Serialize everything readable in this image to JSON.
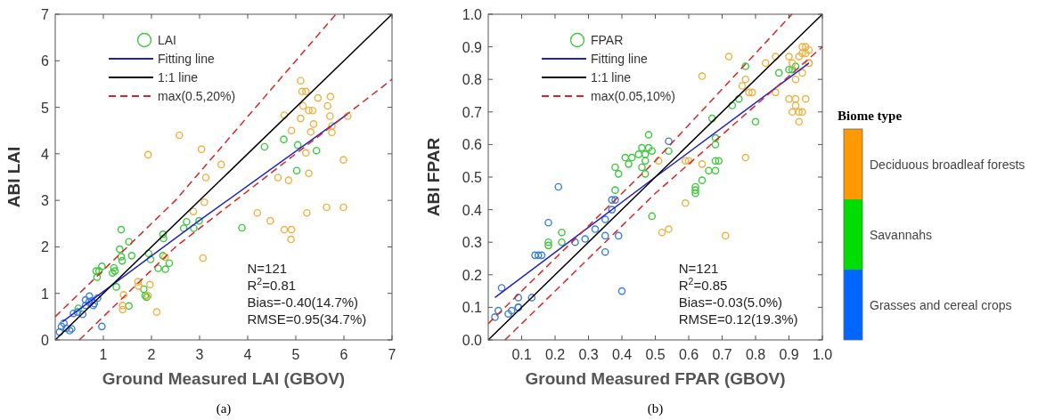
{
  "chart_data": [
    {
      "type": "scatter",
      "title": "(a)",
      "xlabel": "Ground Measured LAI (GBOV)",
      "ylabel": "ABI LAI",
      "xlim": [
        0,
        7
      ],
      "ylim": [
        0,
        7
      ],
      "xticks": [
        1,
        2,
        3,
        4,
        5,
        6,
        7
      ],
      "yticks": [
        0,
        1,
        2,
        3,
        4,
        5,
        6,
        7
      ],
      "legend": "top left",
      "annotations": [
        "N=121",
        "R$^{2}$=0.81",
        "Bias=-0.40(14.7%)",
        "RMSE=0.95(34.7%)"
      ],
      "series": [
        {
          "name": "LAI",
          "type": "scatter",
          "marker": "circle",
          "color": "#3cc83c",
          "x": [
            0.18,
            0.09,
            0.13,
            0.23,
            0.34,
            0.38,
            0.46,
            0.57,
            0.63,
            0.7,
            0.71,
            0.76,
            0.81,
            0.88,
            0.79,
            0.97,
            0.3,
            0.63,
            0.48,
            0.85,
            0.91,
            0.87,
            0.97,
            1.22,
            1.24,
            1.19,
            1.27,
            1.34,
            1.37,
            1.37,
            1.39,
            1.53,
            1.59,
            1.53,
            1.84,
            1.87,
            1.9,
            1.94,
            1.98,
            2.14,
            2.24,
            2.24,
            2.25,
            2.29,
            2.37,
            2.67,
            2.73,
            2.88,
            2.99,
            3.88,
            4.35,
            4.75,
            5.04,
            5.43,
            5.02,
            1.42,
            1.4,
            1.4,
            1.72,
            1.73,
            1.93,
            1.97,
            2.11,
            1.93,
            2.28,
            2.58,
            2.87,
            3.04,
            3.13,
            3.1,
            3.07,
            3.45,
            5.1,
            5.13,
            5.21,
            5.46,
            5.72,
            5.15,
            5.66,
            5.27,
            5.35,
            4.76,
            5.1,
            5.71,
            6.08,
            5.37,
            4.91,
            5.31,
            5.75,
            5.75,
            5.21,
            5.99,
            4.63,
            4.85,
            5.27,
            4.2,
            4.47,
            5.23,
            5.64,
            5.99,
            4.76,
            4.91,
            4.9
          ],
          "values": [
            0.36,
            0.17,
            0.29,
            0.25,
            0.24,
            0.57,
            0.6,
            0.55,
            0.74,
            0.81,
            0.94,
            0.84,
            0.78,
            0.9,
            0.74,
            0.29,
            0.2,
            0.86,
            0.68,
            1.48,
            1.48,
            1.35,
            1.58,
            1.55,
            1.48,
            1.44,
            1.14,
            1.95,
            2.37,
            1.79,
            1.7,
            2.11,
            1.81,
            0.73,
            1.09,
            0.95,
            0.92,
            1.86,
            1.73,
            1.54,
            1.81,
            2.27,
            2.18,
            1.52,
            1.65,
            2.4,
            2.54,
            2.4,
            2.56,
            2.41,
            4.15,
            4.31,
            4.19,
            4.07,
            3.64,
            0.97,
            0.74,
            0.65,
            1.25,
            1.16,
            0.95,
            1.19,
            0.6,
            3.98,
            1.78,
            4.4,
            2.76,
            4.1,
            3.49,
            2.96,
            1.76,
            3.77,
            5.57,
            5.34,
            5.34,
            5.2,
            5.23,
            5.03,
            5.03,
            4.93,
            4.93,
            4.83,
            4.76,
            4.81,
            4.81,
            4.64,
            4.5,
            4.47,
            4.46,
            4.6,
            4.02,
            3.87,
            3.49,
            3.43,
            3.58,
            2.73,
            2.56,
            2.73,
            2.85,
            2.85,
            2.37,
            2.37,
            2.16
          ],
          "colors": [
            "#3a7ee0",
            "#3a7ee0",
            "#3a7ee0",
            "#3a7ee0",
            "#3a7ee0",
            "#3a7ee0",
            "#3a7ee0",
            "#3a7ee0",
            "#3a7ee0",
            "#3a7ee0",
            "#3a7ee0",
            "#3a7ee0",
            "#3a7ee0",
            "#3a7ee0",
            "#3a7ee0",
            "#3a7ee0",
            "#3a7ee0",
            "#3a7ee0",
            "#3cc83c",
            "#3cc83c",
            "#3cc83c",
            "#3cc83c",
            "#3cc83c",
            "#3cc83c",
            "#3cc83c",
            "#3cc83c",
            "#3cc83c",
            "#3cc83c",
            "#3cc83c",
            "#3cc83c",
            "#3cc83c",
            "#3cc83c",
            "#3cc83c",
            "#3cc83c",
            "#3cc83c",
            "#3cc83c",
            "#3cc83c",
            "#3cc83c",
            "#3cc83c",
            "#3cc83c",
            "#3cc83c",
            "#3cc83c",
            "#3cc83c",
            "#3cc83c",
            "#3cc83c",
            "#3cc83c",
            "#3cc83c",
            "#3cc83c",
            "#3cc83c",
            "#3cc83c",
            "#3cc83c",
            "#3cc83c",
            "#3cc83c",
            "#3cc83c",
            "#3cc83c",
            "#f0b040",
            "#f0b040",
            "#f0b040",
            "#f0b040",
            "#f0b040",
            "#f0b040",
            "#f0b040",
            "#f0b040",
            "#f0b040",
            "#f0b040",
            "#f0b040",
            "#f0b040",
            "#f0b040",
            "#f0b040",
            "#f0b040",
            "#f0b040",
            "#f0b040",
            "#f0b040",
            "#f0b040",
            "#f0b040",
            "#f0b040",
            "#f0b040",
            "#f0b040",
            "#f0b040",
            "#f0b040",
            "#f0b040",
            "#f0b040",
            "#f0b040",
            "#f0b040",
            "#f0b040",
            "#f0b040",
            "#f0b040",
            "#f0b040",
            "#f0b040",
            "#f0b040",
            "#f0b040",
            "#f0b040",
            "#f0b040",
            "#f0b040",
            "#f0b040",
            "#f0b040",
            "#f0b040",
            "#f0b040",
            "#f0b040",
            "#f0b040",
            "#f0b040",
            "#f0b040",
            "#f0b040"
          ]
        },
        {
          "name": "Fitting line",
          "type": "line",
          "color": "#1f1fd0",
          "x": [
            0.15,
            3,
            6.07
          ],
          "values": [
            0.39,
            2.57,
            4.85
          ]
        },
        {
          "name": "1:1 line",
          "type": "line",
          "color": "#000000",
          "x": [
            0,
            3.5,
            7
          ],
          "values": [
            0,
            3.5,
            7
          ]
        },
        {
          "name": "max(0.5,20%)",
          "type": "line",
          "line_style": "dashed",
          "color": "#d62728",
          "x": [
            0,
            2.5,
            5.833
          ],
          "values": [
            0.5,
            3,
            7
          ]
        },
        {
          "type": "line",
          "line_style": "dashed",
          "color": "#d62728",
          "x": [
            0.5,
            2.5,
            7
          ],
          "values": [
            0,
            2,
            5.6
          ]
        }
      ]
    },
    {
      "type": "scatter",
      "title": "(b)",
      "xlabel": "Ground Measured FPAR (GBOV)",
      "ylabel": "ABI FPAR",
      "xlim": [
        0,
        1
      ],
      "ylim": [
        0,
        1
      ],
      "xticks": [
        0.1,
        0.2,
        0.3,
        0.4,
        0.5,
        0.6,
        0.7,
        0.8,
        0.9,
        {
          "value": 1,
          "label": "1.0"
        }
      ],
      "yticks": [
        {
          "value": 0,
          "label": "0.0"
        },
        0.1,
        0.2,
        0.3,
        0.4,
        0.5,
        0.6,
        0.7,
        0.8,
        0.9,
        {
          "value": 1,
          "label": "1.0"
        }
      ],
      "legend": "top left",
      "annotations": [
        "N=121",
        "R$^{2}$=0.85",
        "Bias=-0.03(5.0%)",
        "RMSE=0.12(19.3%)"
      ],
      "series": [
        {
          "name": "FPAR",
          "type": "scatter",
          "marker": "circle",
          "color": "#3cc83c",
          "x": [
            0.02,
            0.03,
            0.04,
            0.06,
            0.07,
            0.09,
            0.09,
            0.09,
            0.13,
            0.14,
            0.15,
            0.16,
            0.18,
            0.21,
            0.26,
            0.29,
            0.32,
            0.35,
            0.35,
            0.35,
            0.37,
            0.37,
            0.38,
            0.39,
            0.4,
            0.54,
            0.18,
            0.18,
            0.22,
            0.22,
            0.38,
            0.38,
            0.39,
            0.41,
            0.42,
            0.43,
            0.45,
            0.46,
            0.46,
            0.47,
            0.47,
            0.47,
            0.48,
            0.48,
            0.49,
            0.49,
            0.54,
            0.62,
            0.62,
            0.62,
            0.64,
            0.66,
            0.67,
            0.68,
            0.68,
            0.68,
            0.69,
            0.68,
            0.73,
            0.75,
            0.77,
            0.8,
            0.87,
            0.9,
            0.91,
            0.92,
            0.51,
            0.59,
            0.6,
            0.64,
            0.64,
            0.59,
            0.54,
            0.52,
            0.71,
            0.72,
            0.77,
            0.76,
            0.78,
            0.79,
            0.83,
            0.86,
            0.86,
            0.9,
            0.9,
            0.91,
            0.91,
            0.92,
            0.92,
            0.92,
            0.93,
            0.93,
            0.94,
            0.95,
            0.94,
            0.95,
            0.94,
            0.95,
            0.96,
            0.96,
            0.96,
            0.93,
            0.94,
            0.77
          ],
          "values": [
            0.07,
            0.09,
            0.16,
            0.08,
            0.09,
            0.1,
            0.13,
            0.1,
            0.13,
            0.26,
            0.26,
            0.26,
            0.36,
            0.47,
            0.3,
            0.31,
            0.34,
            0.37,
            0.32,
            0.27,
            0.4,
            0.43,
            0.43,
            0.32,
            0.15,
            0.61,
            0.3,
            0.29,
            0.33,
            0.3,
            0.46,
            0.53,
            0.51,
            0.56,
            0.54,
            0.56,
            0.57,
            0.53,
            0.59,
            0.51,
            0.55,
            0.57,
            0.63,
            0.59,
            0.58,
            0.38,
            0.58,
            0.47,
            0.46,
            0.45,
            0.49,
            0.52,
            0.68,
            0.6,
            0.55,
            0.52,
            0.55,
            0.62,
            0.72,
            0.74,
            0.84,
            0.67,
            0.82,
            0.83,
            0.83,
            0.84,
            0.55,
            0.55,
            0.55,
            0.54,
            0.81,
            0.42,
            0.34,
            0.33,
            0.32,
            0.87,
            0.8,
            0.78,
            0.76,
            0.76,
            0.85,
            0.76,
            0.87,
            0.87,
            0.74,
            0.7,
            0.85,
            0.72,
            0.8,
            0.74,
            0.67,
            0.7,
            0.7,
            0.74,
            0.9,
            0.9,
            0.88,
            0.88,
            0.89,
            0.85,
            0.85,
            0.87,
            0.82,
            0.56
          ],
          "colors": [
            "#3a7ee0",
            "#3a7ee0",
            "#3a7ee0",
            "#3a7ee0",
            "#3a7ee0",
            "#3a7ee0",
            "#3a7ee0",
            "#3a7ee0",
            "#3a7ee0",
            "#3a7ee0",
            "#3a7ee0",
            "#3a7ee0",
            "#3a7ee0",
            "#3a7ee0",
            "#3a7ee0",
            "#3a7ee0",
            "#3a7ee0",
            "#3a7ee0",
            "#3a7ee0",
            "#3a7ee0",
            "#3a7ee0",
            "#3a7ee0",
            "#3a7ee0",
            "#3a7ee0",
            "#3a7ee0",
            "#3a7ee0",
            "#3cc83c",
            "#3cc83c",
            "#3cc83c",
            "#3cc83c",
            "#3cc83c",
            "#3cc83c",
            "#3cc83c",
            "#3cc83c",
            "#3cc83c",
            "#3cc83c",
            "#3cc83c",
            "#3cc83c",
            "#3cc83c",
            "#3cc83c",
            "#3cc83c",
            "#3cc83c",
            "#3cc83c",
            "#3cc83c",
            "#3cc83c",
            "#3cc83c",
            "#3cc83c",
            "#3cc83c",
            "#3cc83c",
            "#3cc83c",
            "#3cc83c",
            "#3cc83c",
            "#3cc83c",
            "#3cc83c",
            "#3cc83c",
            "#3cc83c",
            "#3cc83c",
            "#3cc83c",
            "#3cc83c",
            "#3cc83c",
            "#3cc83c",
            "#3cc83c",
            "#3cc83c",
            "#3cc83c",
            "#3cc83c",
            "#3cc83c",
            "#f0b040",
            "#f0b040",
            "#f0b040",
            "#f0b040",
            "#f0b040",
            "#f0b040",
            "#f0b040",
            "#f0b040",
            "#f0b040",
            "#f0b040",
            "#f0b040",
            "#f0b040",
            "#f0b040",
            "#f0b040",
            "#f0b040",
            "#f0b040",
            "#f0b040",
            "#f0b040",
            "#f0b040",
            "#f0b040",
            "#f0b040",
            "#f0b040",
            "#f0b040",
            "#f0b040",
            "#f0b040",
            "#f0b040",
            "#f0b040",
            "#f0b040",
            "#f0b040",
            "#f0b040",
            "#f0b040",
            "#f0b040",
            "#f0b040",
            "#f0b040",
            "#f0b040",
            "#f0b040",
            "#f0b040",
            "#f0b040"
          ]
        },
        {
          "name": "Fitting line",
          "type": "line",
          "color": "#1f1fd0",
          "x": [
            0.02,
            0.5,
            0.96
          ],
          "values": [
            0.13,
            0.5,
            0.85
          ]
        },
        {
          "name": "1:1 line",
          "type": "line",
          "color": "#000000",
          "x": [
            0,
            0.5,
            1
          ],
          "values": [
            0,
            0.5,
            1
          ]
        },
        {
          "name": "max(0.05,10%)",
          "type": "line",
          "line_style": "dashed",
          "color": "#d62728",
          "x": [
            0,
            0.5,
            0.909
          ],
          "values": [
            0.05,
            0.55,
            1
          ]
        },
        {
          "type": "line",
          "line_style": "dashed",
          "color": "#d62728",
          "x": [
            0.05,
            0.5,
            1
          ],
          "values": [
            0,
            0.45,
            0.9
          ]
        }
      ]
    },
    {
      "type": "other",
      "title": "Biome type",
      "categories": [
        "Deciduous broadleaf forests",
        "Savannahs",
        "Grasses and cereal crops"
      ],
      "colors": [
        "#ff9900",
        "#00dd00",
        "#0066ff"
      ]
    }
  ]
}
